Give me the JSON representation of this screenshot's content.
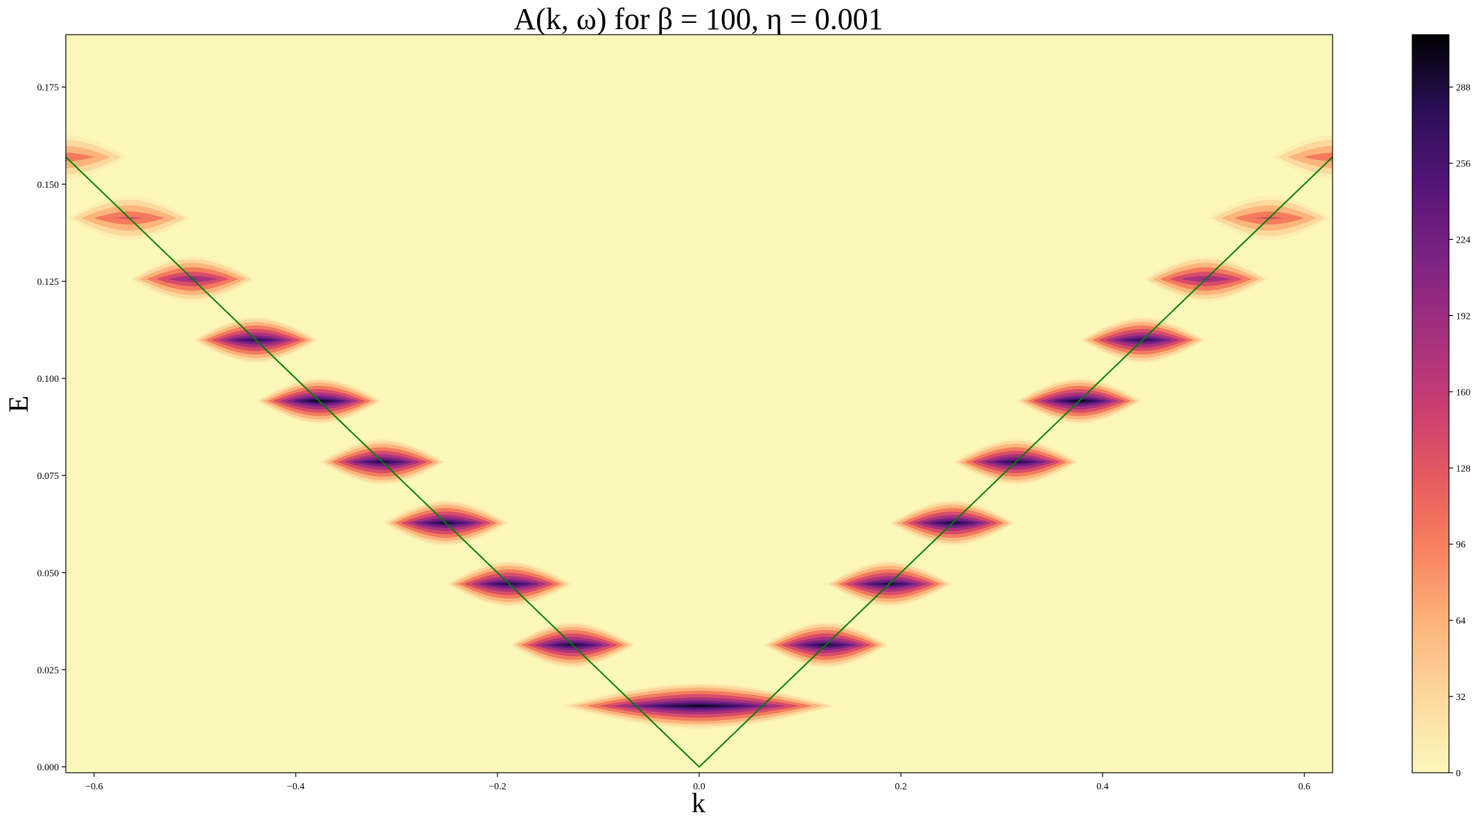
{
  "chart_data": {
    "type": "heatmap",
    "title": "A(k, ω) for β = 100, η = 0.001",
    "xlabel": "k",
    "ylabel": "E",
    "xlim": [
      -0.628,
      0.628
    ],
    "ylim": [
      -0.0015,
      0.1885
    ],
    "x_ticks": [
      -0.6,
      -0.4,
      -0.2,
      0.0,
      0.2,
      0.4,
      0.6
    ],
    "x_tick_labels": [
      "−0.6",
      "−0.4",
      "−0.2",
      "0.0",
      "0.2",
      "0.4",
      "0.6"
    ],
    "y_ticks": [
      0.0,
      0.025,
      0.05,
      0.075,
      0.1,
      0.125,
      0.15,
      0.175
    ],
    "y_tick_labels": [
      "0.000",
      "0.025",
      "0.050",
      "0.075",
      "0.100",
      "0.125",
      "0.150",
      "0.175"
    ],
    "colorbar": {
      "colormap": "magma_r",
      "range": [
        0,
        310
      ],
      "ticks": [
        0,
        32,
        64,
        96,
        128,
        160,
        192,
        224,
        256,
        288
      ],
      "tick_labels": [
        "0",
        "32",
        "64",
        "96",
        "128",
        "160",
        "192",
        "224",
        "256",
        "288"
      ]
    },
    "dispersion_line": {
      "color": "#008000",
      "points": [
        [
          -0.628,
          0.157
        ],
        [
          0.0,
          0.0
        ],
        [
          0.628,
          0.157
        ]
      ]
    },
    "peaks": [
      {
        "k": 0.0,
        "E": 0.0157,
        "intensity": 310,
        "k_halfwidth": 0.12
      },
      {
        "k": -0.1256,
        "E": 0.0314,
        "intensity": 300,
        "k_halfwidth": 0.055
      },
      {
        "k": 0.1256,
        "E": 0.0314,
        "intensity": 300,
        "k_halfwidth": 0.055
      },
      {
        "k": -0.1884,
        "E": 0.0471,
        "intensity": 295,
        "k_halfwidth": 0.055
      },
      {
        "k": 0.1884,
        "E": 0.0471,
        "intensity": 295,
        "k_halfwidth": 0.055
      },
      {
        "k": -0.2512,
        "E": 0.0628,
        "intensity": 300,
        "k_halfwidth": 0.055
      },
      {
        "k": 0.2512,
        "E": 0.0628,
        "intensity": 300,
        "k_halfwidth": 0.055
      },
      {
        "k": -0.314,
        "E": 0.0785,
        "intensity": 295,
        "k_halfwidth": 0.055
      },
      {
        "k": 0.314,
        "E": 0.0785,
        "intensity": 295,
        "k_halfwidth": 0.055
      },
      {
        "k": -0.3768,
        "E": 0.0942,
        "intensity": 310,
        "k_halfwidth": 0.055
      },
      {
        "k": 0.3768,
        "E": 0.0942,
        "intensity": 310,
        "k_halfwidth": 0.055
      },
      {
        "k": -0.4396,
        "E": 0.1099,
        "intensity": 290,
        "k_halfwidth": 0.055
      },
      {
        "k": 0.4396,
        "E": 0.1099,
        "intensity": 290,
        "k_halfwidth": 0.055
      },
      {
        "k": -0.5024,
        "E": 0.1256,
        "intensity": 220,
        "k_halfwidth": 0.055
      },
      {
        "k": 0.5024,
        "E": 0.1256,
        "intensity": 220,
        "k_halfwidth": 0.055
      },
      {
        "k": -0.5652,
        "E": 0.1413,
        "intensity": 150,
        "k_halfwidth": 0.055
      },
      {
        "k": 0.5652,
        "E": 0.1413,
        "intensity": 150,
        "k_halfwidth": 0.055
      },
      {
        "k": -0.628,
        "E": 0.157,
        "intensity": 130,
        "k_halfwidth": 0.055
      },
      {
        "k": 0.628,
        "E": 0.157,
        "intensity": 130,
        "k_halfwidth": 0.055
      }
    ]
  }
}
